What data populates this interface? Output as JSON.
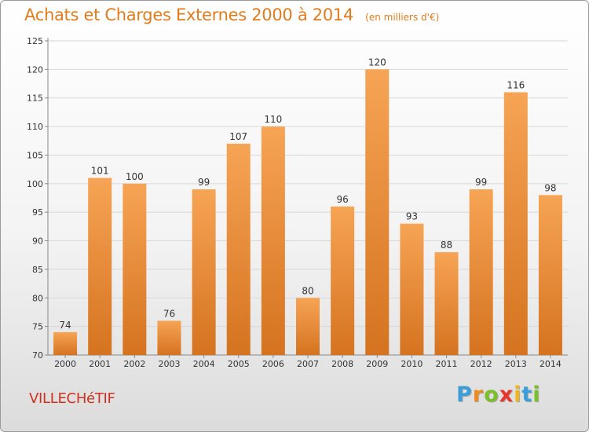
{
  "title": "Achats et Charges Externes 2000 à 2014",
  "subtitle": "(en milliers d'€)",
  "location": "VILLECHéTIF",
  "brand": {
    "letters": [
      "P",
      "r",
      "o",
      "x",
      "i",
      "t",
      "i"
    ],
    "colors": [
      "#3a9fd8",
      "#f08a1d",
      "#7bbf2a",
      "#e8342b",
      "#f0b81d",
      "#3a9fd8",
      "#7bbf2a"
    ]
  },
  "colors": {
    "bar_light": "#f6a455",
    "bar_dark": "#d5731f",
    "text": "#333333",
    "accent": "#e07c1c"
  },
  "chart_data": {
    "type": "bar",
    "categories": [
      "2000",
      "2001",
      "2002",
      "2003",
      "2004",
      "2005",
      "2006",
      "2007",
      "2008",
      "2009",
      "2010",
      "2011",
      "2012",
      "2013",
      "2014"
    ],
    "values": [
      74,
      101,
      100,
      76,
      99,
      107,
      110,
      80,
      96,
      120,
      93,
      88,
      99,
      116,
      98
    ],
    "ylim": [
      70,
      125
    ],
    "yticks": [
      70,
      75,
      80,
      85,
      90,
      95,
      100,
      105,
      110,
      115,
      120,
      125
    ],
    "grid": true
  }
}
